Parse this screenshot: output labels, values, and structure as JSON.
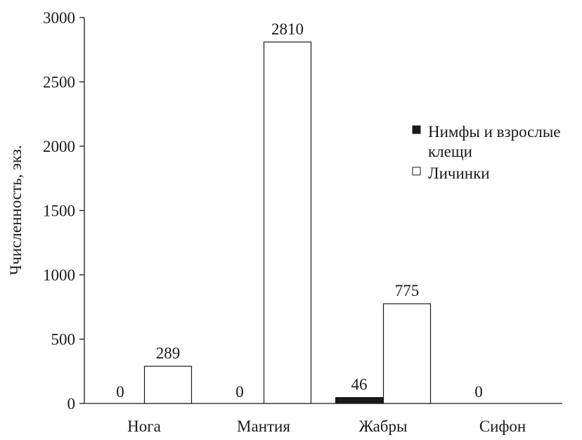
{
  "chart_data": {
    "type": "bar",
    "title": "",
    "xlabel": "",
    "ylabel": "Ччисленность, экз.",
    "ylim": [
      0,
      3000
    ],
    "yticks": [
      0,
      500,
      1000,
      1500,
      2000,
      2500,
      3000
    ],
    "categories": [
      "Нога",
      "Мантия",
      "Жабры",
      "Сифон"
    ],
    "series": [
      {
        "name": "Нимфы и взрослые клещи",
        "values": [
          0,
          0,
          46,
          0
        ],
        "data_labels": [
          "0",
          "0",
          "46",
          "0"
        ],
        "color": "#1a1a1a"
      },
      {
        "name": "Личинки",
        "values": [
          289,
          2810,
          775,
          0
        ],
        "data_labels": [
          "289",
          "2810",
          "775",
          ""
        ],
        "color": "#ffffff"
      }
    ],
    "legend": {
      "placement": "right",
      "entries": [
        {
          "lines": [
            "Нимфы и взрослые",
            "клещи"
          ],
          "color": "#1a1a1a"
        },
        {
          "lines": [
            "Личинки"
          ],
          "color": "#ffffff"
        }
      ]
    },
    "grid": false
  }
}
